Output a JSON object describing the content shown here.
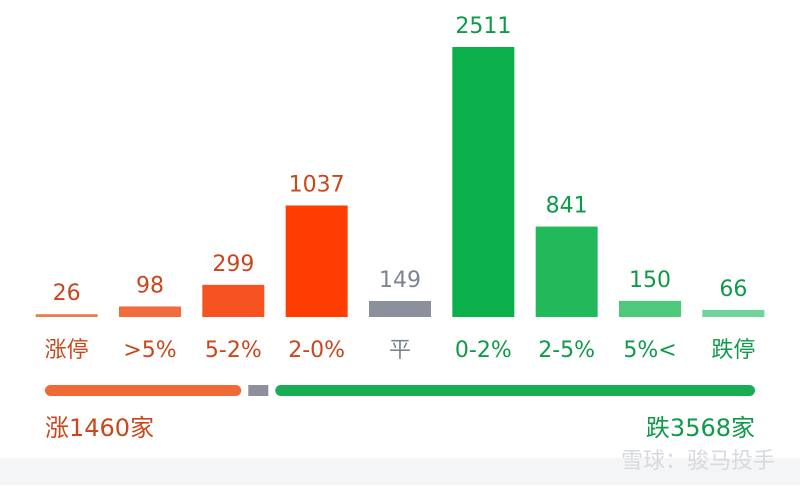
{
  "chart_data": {
    "type": "bar",
    "categories": [
      "涨停",
      ">5%",
      "5-2%",
      "2-0%",
      "平",
      "0-2%",
      "2-5%",
      "5%<",
      "跌停"
    ],
    "values": [
      26,
      98,
      299,
      1037,
      149,
      2511,
      841,
      150,
      66
    ],
    "colors": [
      "#ee7a45",
      "#f26b3c",
      "#f5521f",
      "#ff3d00",
      "#8b909c",
      "#0cb04b",
      "#22b95b",
      "#4cc97b",
      "#6fd49b"
    ],
    "label_colors": [
      "#c9471b",
      "#c9471b",
      "#c9471b",
      "#c9471b",
      "#7d8494",
      "#0e9a48",
      "#0e9a48",
      "#0e9a48",
      "#0e9a48"
    ],
    "summary": {
      "up": {
        "value": 1460,
        "label": "涨1460家",
        "color": "#ef6a34"
      },
      "down": {
        "value": 3568,
        "label": "跌3568家",
        "color": "#17ad52"
      }
    },
    "watermark": "雪球：骏马投手"
  }
}
